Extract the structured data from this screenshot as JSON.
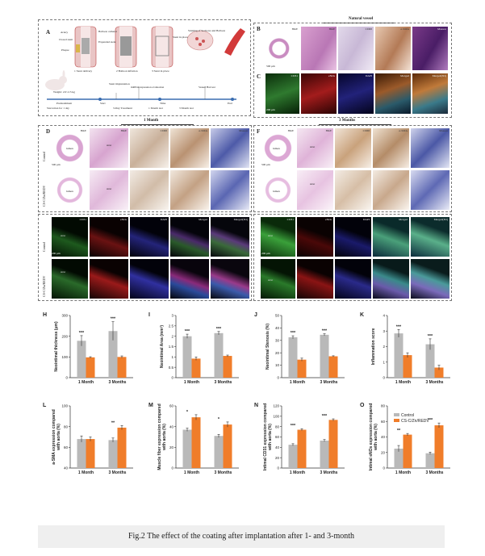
{
  "panel_letters": {
    "A": "A",
    "B": "B",
    "C": "C",
    "D": "D",
    "E": "E",
    "F": "F",
    "G": "G",
    "H": "H",
    "I": "I",
    "J": "J",
    "K": "K",
    "L": "L",
    "M": "M",
    "N": "N",
    "O": "O"
  },
  "schematic": {
    "stent_labels": [
      "Artery",
      "Closed stent",
      "Plaque",
      "Balloon catheter",
      "Expanded stent",
      "Stent in place"
    ],
    "steps": [
      "1 Stent delivery",
      "2 Balloon inflation",
      "3 Stent in place"
    ],
    "staining_label": "Staining of Sections and Balloon",
    "weight_label": "Weight: 2.0~2.5 kg",
    "timeline_labels": [
      "Preinstalment",
      "Start",
      "Starvation for 1 day",
      "3-Day Treatment",
      "Stent implantation",
      "Vessel Harvest",
      "mRNA expression evaluation",
      "1 Month test",
      "3 Month test",
      "End"
    ],
    "timeline_top": [
      "Stent implantation",
      "mRNA expression evaluation",
      "Vessel Harvest"
    ],
    "timeline_bottom": [
      "Preinstalment",
      "Starvation for 1 day",
      "3-Day Treatment",
      "1 Month test",
      "3 Month test"
    ],
    "timeline_nodes": [
      "Start",
      "Time",
      "End"
    ]
  },
  "panelB": {
    "title": "Natural vessel",
    "row1": [
      "H&E",
      "H&E",
      "CD68",
      "α-SMA",
      "Masson"
    ],
    "row2": [
      "CD31",
      "eNOs",
      "DAPI",
      "Merged",
      "Merged(3D)"
    ],
    "scale1": "500 μm",
    "scale2": "200 μm"
  },
  "sectionD": {
    "title": "1 Month",
    "cols": [
      "H&E",
      "H&E",
      "CD68",
      "α-SMA",
      "Masson"
    ],
    "rows": [
      "Control",
      "CS-C/Zn/REDV"
    ],
    "scale": "500 μm",
    "lumen": "lumen",
    "strut": "strut"
  },
  "sectionF": {
    "title": "3 Months",
    "cols": [
      "H&E",
      "H&E",
      "CD68",
      "α-SMA",
      "Masson"
    ],
    "scale": "500 μm",
    "lumen": "lumen",
    "strut": "strut"
  },
  "sectionE": {
    "cols": [
      "CD31",
      "eNOs",
      "DAPI",
      "Merged",
      "Merged(3D)"
    ],
    "rows": [
      "Control",
      "CS-C/Zn/REDV"
    ],
    "scale": "200 μm",
    "strut": "strut"
  },
  "sectionG": {
    "cols": [
      "CD31",
      "eNOs",
      "DAPI",
      "Merged",
      "Merged(3D)"
    ],
    "scale": "200 μm",
    "strut": "strut"
  },
  "legend": {
    "control": "Control",
    "treated": "CS-C/Zn/REDV"
  },
  "colors": {
    "control": "#b9b9b9",
    "treated": "#f07d2a"
  },
  "charts": [
    {
      "id": "H",
      "type": "bar",
      "ylabel": "Neointimal thickness (μm)",
      "categories": [
        "1 Month",
        "3 Months"
      ],
      "yticks": [
        0,
        100,
        200,
        300
      ],
      "ylim": [
        0,
        300
      ],
      "control": [
        178,
        225
      ],
      "treated": [
        98,
        100
      ],
      "control_err": [
        25,
        45
      ],
      "treated_err": [
        3,
        5
      ],
      "sig": [
        "***",
        "***"
      ]
    },
    {
      "id": "I",
      "type": "bar",
      "ylabel": "Neointimal Area (mm²)",
      "categories": [
        "1 Month",
        "3 Months"
      ],
      "yticks": [
        0.0,
        0.5,
        1.0,
        1.5,
        2.0,
        2.5,
        3.0
      ],
      "ylim": [
        0,
        3.0
      ],
      "control": [
        2.0,
        2.15
      ],
      "treated": [
        0.92,
        1.05
      ],
      "control_err": [
        0.1,
        0.08
      ],
      "treated_err": [
        0.08,
        0.04
      ],
      "sig": [
        "***",
        "***"
      ]
    },
    {
      "id": "J",
      "type": "bar",
      "ylabel": "Neointimal Stenosis (%)",
      "categories": [
        "1 Month",
        "3 Months"
      ],
      "yticks": [
        0,
        10,
        20,
        30,
        40,
        50
      ],
      "ylim": [
        0,
        50
      ],
      "control": [
        32.5,
        34.5
      ],
      "treated": [
        14.5,
        17.2
      ],
      "control_err": [
        1.2,
        0.8
      ],
      "treated_err": [
        1.2,
        0.4
      ],
      "sig": [
        "***",
        "***"
      ]
    },
    {
      "id": "K",
      "type": "bar",
      "ylabel": "Inflammation score",
      "categories": [
        "1 Month",
        "3 Months"
      ],
      "yticks": [
        0,
        1,
        2,
        3,
        4
      ],
      "ylim": [
        0,
        4
      ],
      "control": [
        2.85,
        2.15
      ],
      "treated": [
        1.45,
        0.65
      ],
      "control_err": [
        0.25,
        0.35
      ],
      "treated_err": [
        0.15,
        0.15
      ],
      "sig": [
        "***",
        "***"
      ]
    },
    {
      "id": "L",
      "type": "bar",
      "ylabel": "a-SMA expression compared with aorta (%)",
      "categories": [
        "1 Month",
        "3 Months"
      ],
      "yticks": [
        40,
        60,
        80,
        100
      ],
      "ylim": [
        40,
        100
      ],
      "control": [
        68,
        67
      ],
      "treated": [
        68,
        79
      ],
      "control_err": [
        3,
        2
      ],
      "treated_err": [
        2,
        2
      ],
      "sig": [
        "",
        "**"
      ]
    },
    {
      "id": "M",
      "type": "bar",
      "ylabel": "Muscle fiber expression compared with aorta (%)",
      "categories": [
        "1 Month",
        "3 Months"
      ],
      "yticks": [
        0,
        20,
        40,
        60
      ],
      "ylim": [
        0,
        60
      ],
      "control": [
        37,
        31
      ],
      "treated": [
        49,
        42
      ],
      "control_err": [
        1.5,
        1.5
      ],
      "treated_err": [
        2.5,
        2.5
      ],
      "sig": [
        "*",
        "*"
      ]
    },
    {
      "id": "N",
      "type": "bar",
      "ylabel": "Intimal CD31 expression compared with aorta (%)",
      "categories": [
        "1 Month",
        "3 Months"
      ],
      "yticks": [
        0,
        20,
        40,
        60,
        80,
        100,
        120
      ],
      "ylim": [
        0,
        120
      ],
      "control": [
        45,
        53
      ],
      "treated": [
        74,
        93
      ],
      "control_err": [
        2,
        2
      ],
      "treated_err": [
        2,
        2
      ],
      "sig": [
        "***",
        "***"
      ]
    },
    {
      "id": "O",
      "type": "bar",
      "ylabel": "Intimal eNOs expression compared with aorta (%)",
      "categories": [
        "1 Month",
        "3 Months"
      ],
      "yticks": [
        0,
        20,
        40,
        60,
        80
      ],
      "ylim": [
        0,
        80
      ],
      "control": [
        25,
        19
      ],
      "treated": [
        43,
        55
      ],
      "control_err": [
        4,
        1.5
      ],
      "treated_err": [
        1.5,
        3
      ],
      "sig": [
        "**",
        "***"
      ]
    }
  ],
  "caption": "Fig.2 The effect of the coating after implantation after 1- and 3-month"
}
